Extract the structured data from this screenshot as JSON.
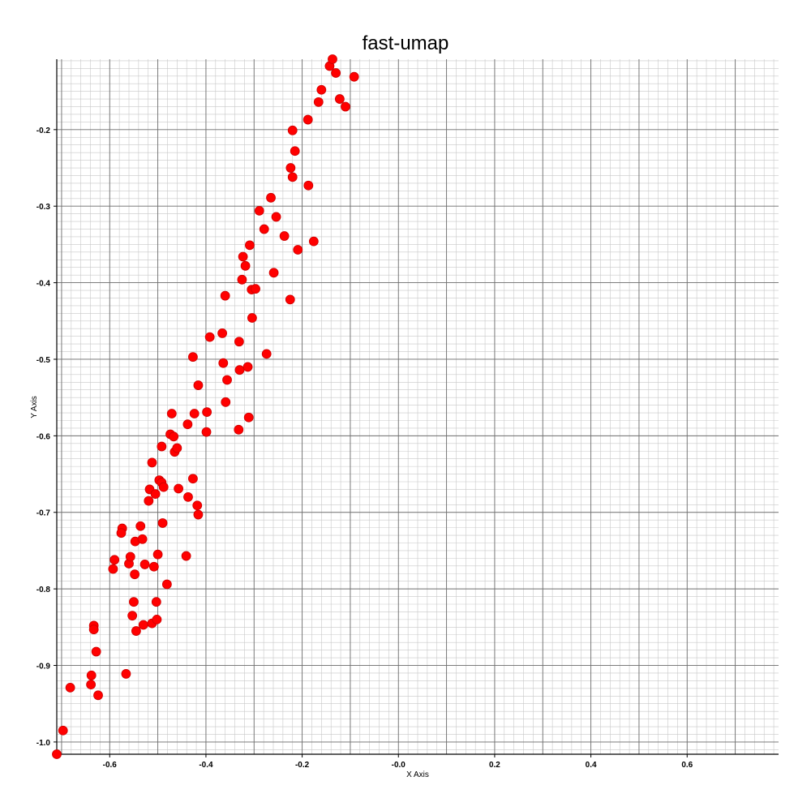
{
  "chart_data": {
    "type": "scatter",
    "title": "fast-umap",
    "xlabel": "X Axis",
    "ylabel": "Y Axis",
    "xlim": [
      -0.71,
      0.79
    ],
    "ylim": [
      -1.016,
      -0.108
    ],
    "grid": true,
    "legend": "none",
    "marker_color": "#ff0000",
    "x_ticks": [
      -0.6,
      -0.4,
      -0.2,
      0.0,
      0.2,
      0.4,
      0.6
    ],
    "x_tick_labels": [
      "-0.6",
      "-0.4",
      "-0.2",
      "-0.0",
      "0.2",
      "0.4",
      "0.6"
    ],
    "y_ticks": [
      -0.2,
      -0.3,
      -0.4,
      -0.5,
      -0.6,
      -0.7,
      -0.8,
      -0.9,
      -1.0
    ],
    "y_tick_labels": [
      "-0.2",
      "-0.3",
      "-0.4",
      "-0.5",
      "-0.6",
      "-0.7",
      "-0.8",
      "-0.9",
      "-1.0"
    ],
    "series": [
      {
        "points": [
          [
            -0.71,
            -1.016
          ],
          [
            -0.697,
            -0.985
          ],
          [
            -0.682,
            -0.929
          ],
          [
            -0.638,
            -0.913
          ],
          [
            -0.639,
            -0.925
          ],
          [
            -0.633,
            -0.848
          ],
          [
            -0.633,
            -0.853
          ],
          [
            -0.628,
            -0.882
          ],
          [
            -0.624,
            -0.939
          ],
          [
            -0.566,
            -0.911
          ],
          [
            -0.593,
            -0.774
          ],
          [
            -0.59,
            -0.762
          ],
          [
            -0.574,
            -0.721
          ],
          [
            -0.576,
            -0.727
          ],
          [
            -0.56,
            -0.767
          ],
          [
            -0.557,
            -0.758
          ],
          [
            -0.553,
            -0.835
          ],
          [
            -0.55,
            -0.817
          ],
          [
            -0.548,
            -0.781
          ],
          [
            -0.547,
            -0.738
          ],
          [
            -0.545,
            -0.855
          ],
          [
            -0.536,
            -0.718
          ],
          [
            -0.532,
            -0.735
          ],
          [
            -0.53,
            -0.847
          ],
          [
            -0.527,
            -0.768
          ],
          [
            -0.519,
            -0.685
          ],
          [
            -0.517,
            -0.67
          ],
          [
            -0.512,
            -0.635
          ],
          [
            -0.512,
            -0.845
          ],
          [
            -0.508,
            -0.771
          ],
          [
            -0.505,
            -0.676
          ],
          [
            -0.503,
            -0.817
          ],
          [
            -0.502,
            -0.84
          ],
          [
            -0.5,
            -0.755
          ],
          [
            -0.497,
            -0.658
          ],
          [
            -0.492,
            -0.614
          ],
          [
            -0.492,
            -0.661
          ],
          [
            -0.49,
            -0.714
          ],
          [
            -0.488,
            -0.667
          ],
          [
            -0.481,
            -0.794
          ],
          [
            -0.474,
            -0.598
          ],
          [
            -0.471,
            -0.571
          ],
          [
            -0.467,
            -0.601
          ],
          [
            -0.465,
            -0.621
          ],
          [
            -0.46,
            -0.616
          ],
          [
            -0.457,
            -0.669
          ],
          [
            -0.441,
            -0.757
          ],
          [
            -0.438,
            -0.585
          ],
          [
            -0.437,
            -0.68
          ],
          [
            -0.427,
            -0.656
          ],
          [
            -0.427,
            -0.497
          ],
          [
            -0.424,
            -0.571
          ],
          [
            -0.418,
            -0.691
          ],
          [
            -0.416,
            -0.534
          ],
          [
            -0.416,
            -0.703
          ],
          [
            -0.399,
            -0.595
          ],
          [
            -0.398,
            -0.569
          ],
          [
            -0.392,
            -0.471
          ],
          [
            -0.366,
            -0.466
          ],
          [
            -0.364,
            -0.505
          ],
          [
            -0.36,
            -0.417
          ],
          [
            -0.359,
            -0.556
          ],
          [
            -0.356,
            -0.527
          ],
          [
            -0.332,
            -0.592
          ],
          [
            -0.331,
            -0.477
          ],
          [
            -0.33,
            -0.514
          ],
          [
            -0.325,
            -0.396
          ],
          [
            -0.323,
            -0.366
          ],
          [
            -0.318,
            -0.378
          ],
          [
            -0.313,
            -0.51
          ],
          [
            -0.311,
            -0.576
          ],
          [
            -0.309,
            -0.351
          ],
          [
            -0.305,
            -0.409
          ],
          [
            -0.304,
            -0.446
          ],
          [
            -0.297,
            -0.408
          ],
          [
            -0.289,
            -0.306
          ],
          [
            -0.279,
            -0.33
          ],
          [
            -0.274,
            -0.493
          ],
          [
            -0.265,
            -0.289
          ],
          [
            -0.259,
            -0.387
          ],
          [
            -0.254,
            -0.314
          ],
          [
            -0.237,
            -0.339
          ],
          [
            -0.225,
            -0.422
          ],
          [
            -0.224,
            -0.25
          ],
          [
            -0.22,
            -0.201
          ],
          [
            -0.22,
            -0.262
          ],
          [
            -0.215,
            -0.228
          ],
          [
            -0.209,
            -0.357
          ],
          [
            -0.188,
            -0.187
          ],
          [
            -0.187,
            -0.273
          ],
          [
            -0.176,
            -0.346
          ],
          [
            -0.166,
            -0.164
          ],
          [
            -0.16,
            -0.148
          ],
          [
            -0.143,
            -0.117
          ],
          [
            -0.137,
            -0.108
          ],
          [
            -0.13,
            -0.126
          ],
          [
            -0.122,
            -0.16
          ],
          [
            -0.11,
            -0.17
          ],
          [
            -0.092,
            -0.131
          ]
        ]
      }
    ]
  }
}
